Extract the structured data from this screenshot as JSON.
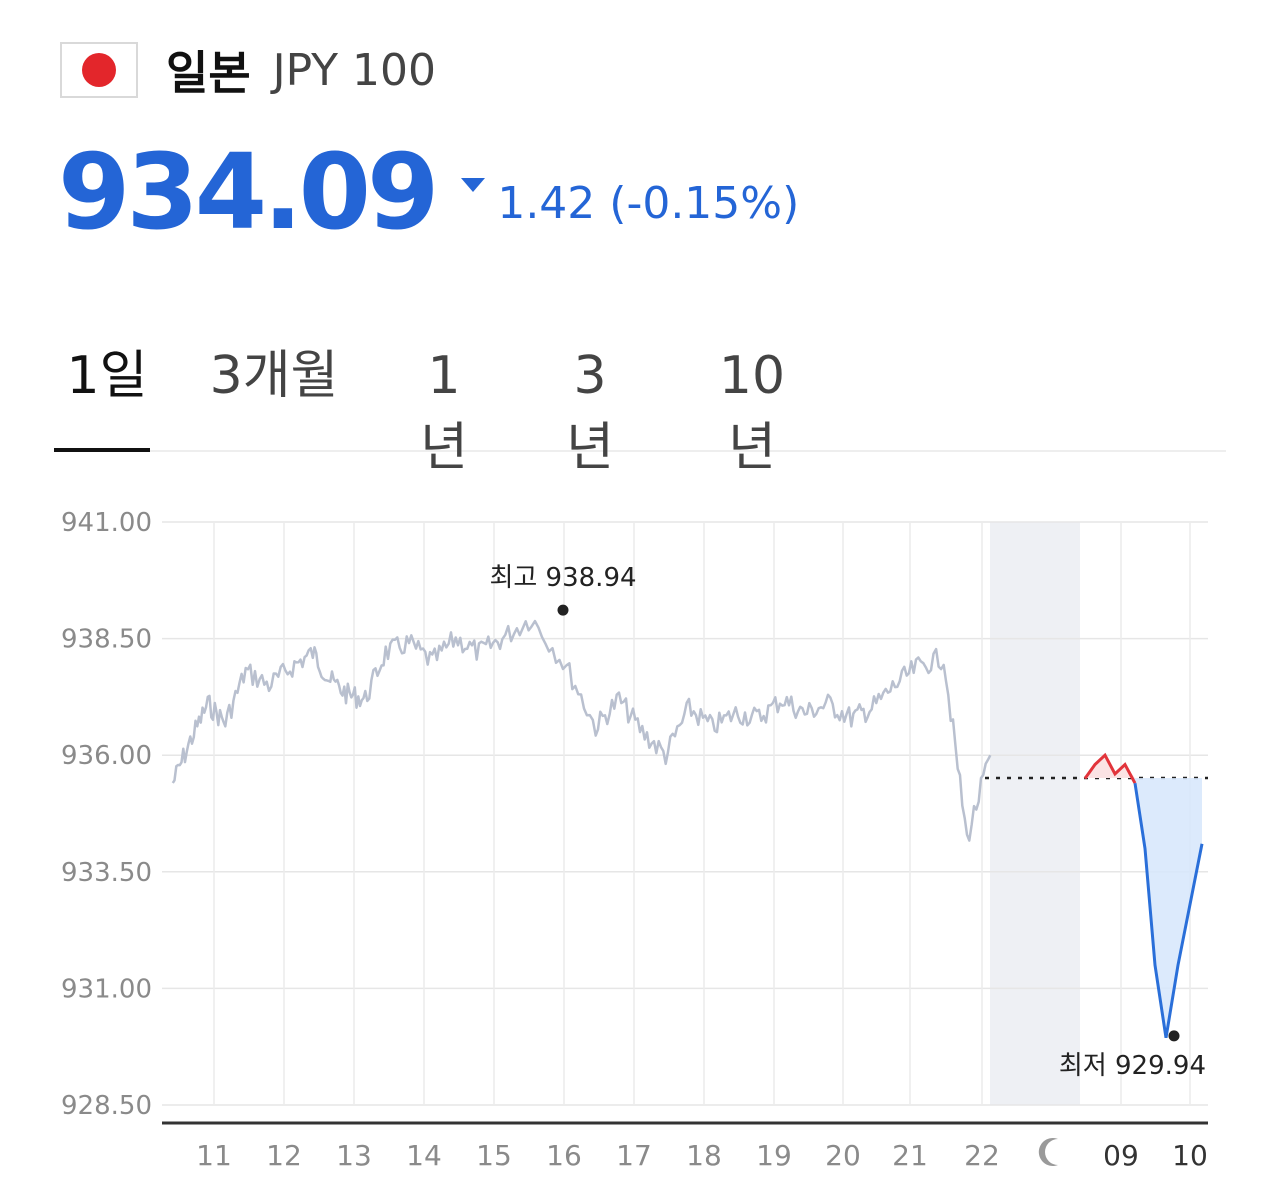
{
  "header": {
    "country": "일본",
    "currency_code": "JPY 100",
    "flag_icon": "japan-flag-icon"
  },
  "quote": {
    "price": "934.09",
    "change_text": "1.42 (-0.15%)",
    "direction_icon": "triangle-down-icon",
    "color": "#2465d6"
  },
  "tabs": [
    {
      "label": "1일",
      "active": true
    },
    {
      "label": "3개월",
      "active": false
    },
    {
      "label": "1년",
      "active": false
    },
    {
      "label": "3년",
      "active": false
    },
    {
      "label": "10년",
      "active": false
    }
  ],
  "chart_data": {
    "type": "line",
    "y_ticks": [
      "941.00",
      "938.50",
      "936.00",
      "933.50",
      "931.00",
      "928.50"
    ],
    "ylim": [
      928.5,
      941.0
    ],
    "x_ticks": [
      "11",
      "12",
      "13",
      "14",
      "15",
      "16",
      "17",
      "18",
      "19",
      "20",
      "21",
      "22",
      "09",
      "10"
    ],
    "night_icon": "moon-icon",
    "reference_value": 935.51,
    "annotations": {
      "high_label": "최고 938.94",
      "low_label": "최저 929.94",
      "high_value": 938.94,
      "low_value": 929.94
    },
    "colors": {
      "previous": "#b9c0cf",
      "up": "#e2343b",
      "down": "#2a6fd9",
      "down_fill": "#d6e6fb",
      "up_fill": "#fbe3e4",
      "night_band": "#eef0f4"
    },
    "previous_session": [
      [
        "11",
        935.4
      ],
      [
        "11",
        936.3
      ],
      [
        "11",
        937.1
      ],
      [
        "11",
        936.7
      ],
      [
        "12",
        937.8
      ],
      [
        "12",
        937.5
      ],
      [
        "12",
        937.9
      ],
      [
        "13",
        938.2
      ],
      [
        "13",
        937.6
      ],
      [
        "13",
        937.3
      ],
      [
        "13",
        937.2
      ],
      [
        "14",
        938.2
      ],
      [
        "14",
        938.4
      ],
      [
        "14",
        938.0
      ],
      [
        "15",
        938.5
      ],
      [
        "15",
        938.2
      ],
      [
        "15",
        938.5
      ],
      [
        "16",
        938.94
      ],
      [
        "16",
        937.9
      ],
      [
        "17",
        936.6
      ],
      [
        "17",
        937.2
      ],
      [
        "17",
        936.5
      ],
      [
        "18",
        936.0
      ],
      [
        "18",
        937.0
      ],
      [
        "18",
        936.6
      ],
      [
        "19",
        936.9
      ],
      [
        "19",
        936.8
      ],
      [
        "19",
        937.2
      ],
      [
        "20",
        936.9
      ],
      [
        "20",
        937.1
      ],
      [
        "20",
        936.8
      ],
      [
        "21",
        937.0
      ],
      [
        "21",
        937.5
      ],
      [
        "21",
        937.9
      ],
      [
        "22",
        938.1
      ],
      [
        "22",
        934.2
      ],
      [
        "22",
        936.0
      ]
    ],
    "current_session": [
      [
        "09",
        935.5
      ],
      [
        "09",
        935.8
      ],
      [
        "09",
        936.0
      ],
      [
        "09",
        935.6
      ],
      [
        "09",
        935.8
      ],
      [
        "09",
        935.4
      ],
      [
        "09",
        934.0
      ],
      [
        "09",
        931.5
      ],
      [
        "10",
        929.94
      ],
      [
        "10",
        931.5
      ],
      [
        "10",
        932.8
      ],
      [
        "10",
        934.1
      ]
    ]
  }
}
